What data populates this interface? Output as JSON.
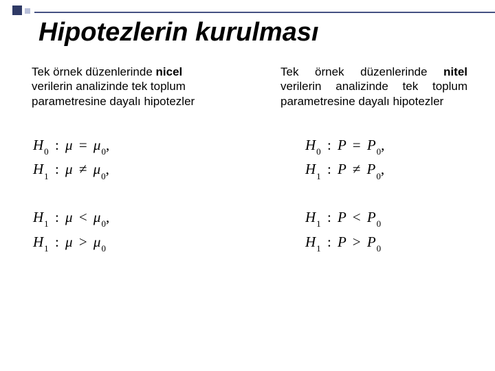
{
  "colors": {
    "accent_dark": "#2f3a66",
    "accent_light": "#b9c0da",
    "accent_line": "#455182",
    "background": "#ffffff",
    "text": "#000000"
  },
  "typography": {
    "title_fontsize": 38,
    "title_style": "italic",
    "body_fontsize": 17,
    "equation_fontsize": 21,
    "equation_family": "Times New Roman"
  },
  "title": "Hipotezlerin kurulması",
  "left": {
    "intro_pre": "Tek örnek düzenlerinde ",
    "intro_bold": "nicel",
    "intro_post": " verilerin analizinde tek toplum parametresine dayalı hipotezler",
    "symbol": "μ",
    "symbol0": "μ",
    "eq_group1": [
      {
        "hsub": "0",
        "lhs": "μ",
        "op": "=",
        "rhs": "μ",
        "rsub": "0",
        "tail": ","
      },
      {
        "hsub": "1",
        "lhs": "μ",
        "op": "≠",
        "rhs": "μ",
        "rsub": "0",
        "tail": ","
      }
    ],
    "eq_group2": [
      {
        "hsub": "1",
        "lhs": "μ",
        "op": "<",
        "rhs": "μ",
        "rsub": "0",
        "tail": ","
      },
      {
        "hsub": "1",
        "lhs": "μ",
        "op": ">",
        "rhs": "μ",
        "rsub": "0",
        "tail": ""
      }
    ]
  },
  "right": {
    "intro_pre": "Tek örnek düzenlerinde ",
    "intro_bold": "nitel",
    "intro_post": " verilerin analizinde tek toplum parametresine dayalı hipotezler",
    "symbol": "P",
    "symbol0": "P",
    "eq_group1": [
      {
        "hsub": "0",
        "lhs": "P",
        "op": "=",
        "rhs": "P",
        "rsub": "0",
        "tail": ","
      },
      {
        "hsub": "1",
        "lhs": "P",
        "op": "≠",
        "rhs": "P",
        "rsub": "0",
        "tail": ","
      }
    ],
    "eq_group2": [
      {
        "hsub": "1",
        "lhs": "P",
        "op": "<",
        "rhs": "P",
        "rsub": "0",
        "tail": ""
      },
      {
        "hsub": "1",
        "lhs": "P",
        "op": ">",
        "rhs": "P",
        "rsub": "0",
        "tail": ""
      }
    ]
  }
}
